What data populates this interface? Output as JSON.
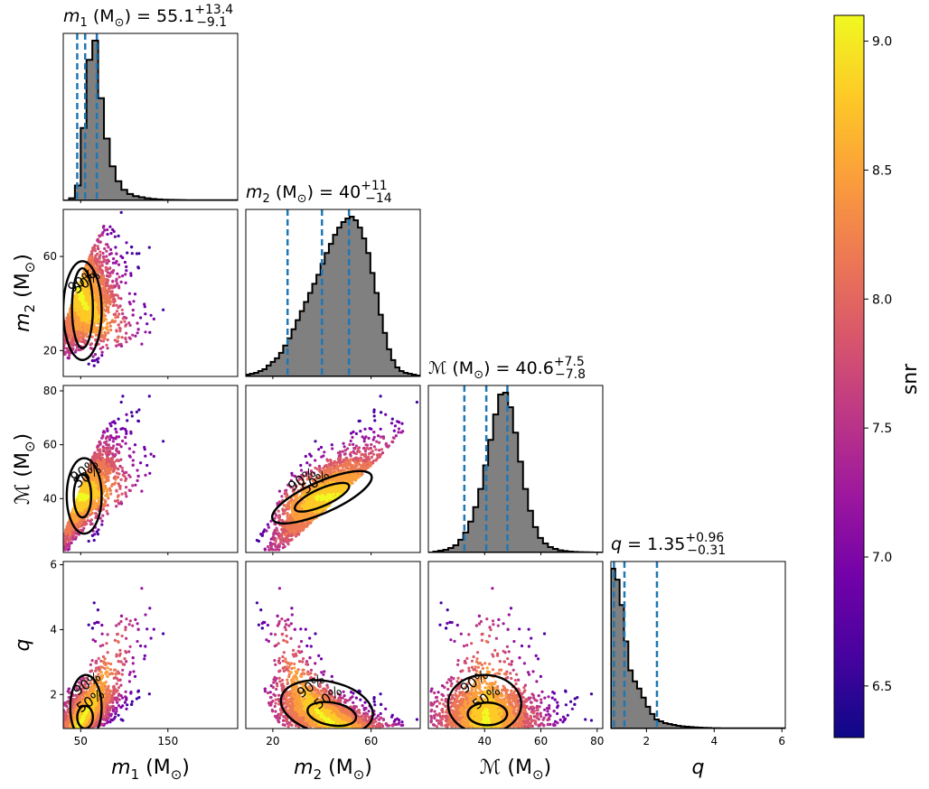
{
  "chart_data": {
    "type": "corner",
    "parameters": [
      {
        "id": "m1",
        "label": "m_1 (M_⊙)",
        "label_sym": "m",
        "label_sub": "1",
        "unit": "(M",
        "unit_sub": "⊙",
        "unit_close": ")",
        "title_eq": "= 55.1",
        "title_sup": "+13.4",
        "title_sub": "−9.1",
        "median": 55.1,
        "lower": 46.0,
        "upper": 68.5,
        "range": [
          30,
          230
        ],
        "ticks": [
          50,
          150
        ],
        "tick_labels": [
          "50",
          "150"
        ],
        "hist": [
          0,
          1,
          7,
          34,
          66,
          75,
          48,
          29,
          16,
          9,
          5,
          3,
          2,
          1.5,
          1,
          0.7,
          0.5,
          0.3,
          0.25,
          0.2,
          0.15,
          0.1,
          0.1,
          0.1,
          0.1,
          0.1,
          0.1,
          0.1,
          0.1,
          0.1
        ]
      },
      {
        "id": "m2",
        "label": "m_2 (M_⊙)",
        "label_sym": "m",
        "label_sub": "2",
        "unit": "(M",
        "unit_sub": "⊙",
        "unit_close": ")",
        "title_eq": "= 40",
        "title_sup": "+11",
        "title_sub": "−14",
        "median": 40,
        "lower": 26,
        "upper": 51,
        "range": [
          9,
          80
        ],
        "ticks": [
          20,
          60
        ],
        "tick_labels": [
          "20",
          "60"
        ],
        "hist": [
          1,
          1.5,
          2,
          3,
          4,
          6,
          8,
          10,
          13,
          17,
          21,
          26,
          31,
          36,
          41,
          46,
          51,
          56,
          62,
          68,
          73,
          78,
          82,
          85,
          87,
          88,
          86,
          82,
          76,
          68,
          57,
          46,
          34,
          24,
          15,
          9,
          5,
          3,
          2,
          1.5,
          1,
          0.5
        ]
      },
      {
        "id": "mc",
        "label": "ℳ (M_⊙)",
        "label_sym": "ℳ",
        "label_sub": "",
        "unit": "(M",
        "unit_sub": "⊙",
        "unit_close": ")",
        "title_eq": "= 40.6",
        "title_sup": "+7.5",
        "title_sub": "−7.8",
        "median": 40.6,
        "lower": 32.8,
        "upper": 48.1,
        "range": [
          20,
          82
        ],
        "ticks": [
          40,
          60,
          80
        ],
        "tick_labels": [
          "40",
          "60",
          "80"
        ],
        "hist": [
          0,
          0.5,
          1,
          1.5,
          2.5,
          4,
          7,
          11,
          17,
          25,
          35,
          48,
          62,
          76,
          87,
          88,
          80,
          66,
          50,
          35,
          23,
          14,
          8,
          5,
          3,
          2,
          1.2,
          0.8,
          0.5,
          0.3,
          0.2,
          0.1,
          0.05,
          0,
          0
        ]
      },
      {
        "id": "q",
        "label": "q",
        "label_sym": "q",
        "label_sub": "",
        "unit": "",
        "unit_sub": "",
        "unit_close": "",
        "title_eq": "= 1.35",
        "title_sup": "+0.96",
        "title_sub": "−0.31",
        "median": 1.35,
        "lower": 1.04,
        "upper": 2.31,
        "range": [
          0.95,
          6.1
        ],
        "ticks": [
          2,
          4,
          6
        ],
        "tick_labels": [
          "2",
          "4",
          "6"
        ],
        "y_ticks": [
          2,
          4,
          6
        ],
        "hist": [
          88,
          82,
          68,
          48,
          32,
          26,
          22,
          17,
          12,
          8,
          5,
          4,
          3,
          2.5,
          2,
          1.5,
          1.2,
          1,
          0.8,
          0.6,
          0.5,
          0.4,
          0.3,
          0.2,
          0.2,
          0.15,
          0.1,
          0.1,
          0.1,
          0.1,
          0.1,
          0.1,
          0.1,
          0.1,
          0.1,
          0.1,
          0.1,
          0.1,
          0.1,
          0.1
        ]
      }
    ],
    "y_tick_labels": {
      "m2": {
        "ticks": [
          20,
          60
        ],
        "labels": [
          "20",
          "60"
        ]
      },
      "mc": {
        "ticks": [
          40,
          60,
          80
        ],
        "labels": [
          "40",
          "60",
          "80"
        ]
      },
      "q": {
        "ticks": [
          2,
          4,
          6
        ],
        "labels": [
          "2",
          "4",
          "6"
        ]
      }
    },
    "contour_labels": [
      "50%",
      "90%"
    ],
    "colorbar": {
      "label": "snr",
      "range": [
        6.3,
        9.1
      ],
      "ticks": [
        6.5,
        7.0,
        7.5,
        8.0,
        8.5,
        9.0
      ],
      "tick_labels": [
        "6.5",
        "7.0",
        "7.5",
        "8.0",
        "8.5",
        "9.0"
      ],
      "colormap": [
        "#0d0887",
        "#46039f",
        "#7201a8",
        "#9c179e",
        "#bd3786",
        "#d8576b",
        "#ed7953",
        "#fb9f3a",
        "#fdca26",
        "#f0f921"
      ]
    },
    "colors": {
      "hist_fill": "#808080",
      "hist_edge": "#000000",
      "quantile_line": "#1f77b4",
      "contour": "#000000"
    }
  }
}
